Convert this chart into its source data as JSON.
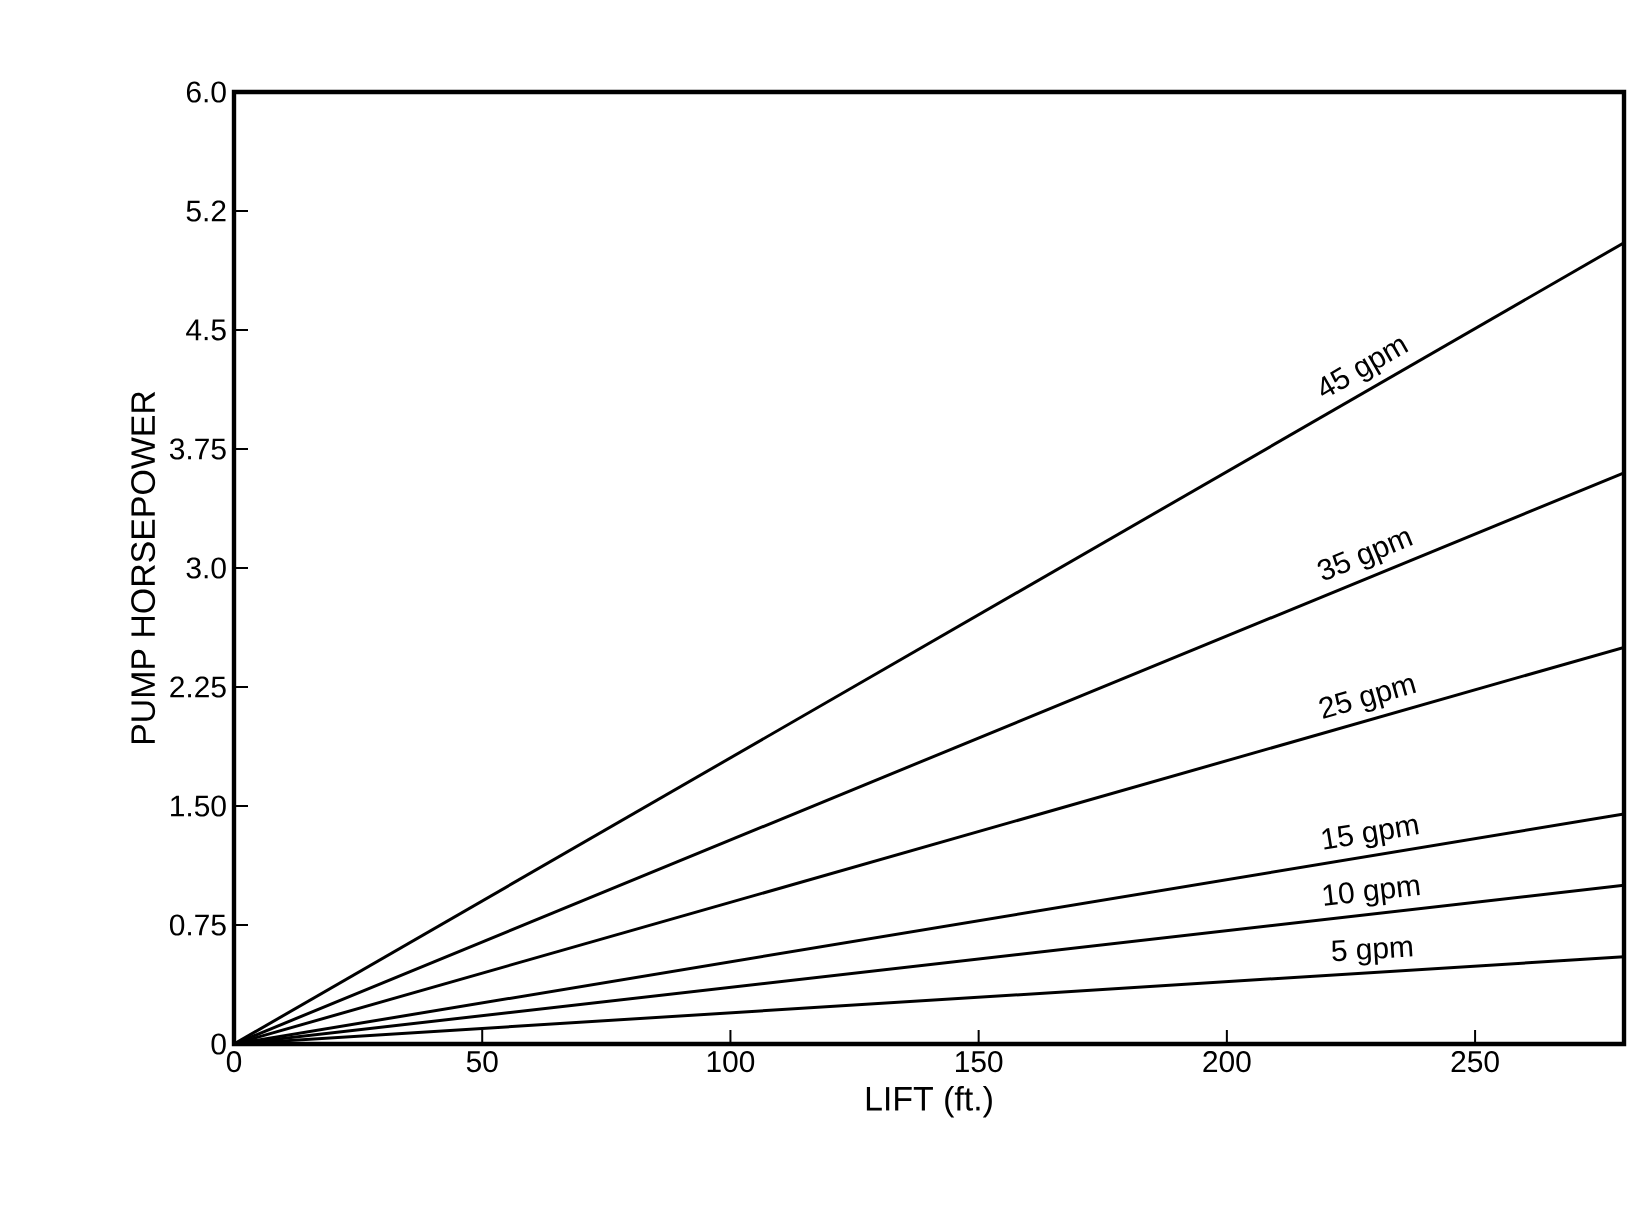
{
  "chart_data": {
    "type": "line",
    "xlabel": "LIFT (ft.)",
    "ylabel": "PUMP HORSEPOWER",
    "x": [
      0,
      280
    ],
    "series": [
      {
        "name": "45 gpm",
        "color": "#000000",
        "values": [
          0,
          5.05
        ]
      },
      {
        "name": "35 gpm",
        "color": "#000000",
        "values": [
          0,
          3.6
        ]
      },
      {
        "name": "25 gpm",
        "color": "#000000",
        "values": [
          0,
          2.5
        ]
      },
      {
        "name": "15 gpm",
        "color": "#000000",
        "values": [
          0,
          1.45
        ]
      },
      {
        "name": "10 gpm",
        "color": "#000000",
        "values": [
          0,
          1.0
        ]
      },
      {
        "name": "5 gpm",
        "color": "#000000",
        "values": [
          0,
          0.55
        ]
      }
    ],
    "xlim": [
      0,
      280
    ],
    "xticks": [
      0,
      50,
      100,
      150,
      200,
      250
    ],
    "ylim": [
      0,
      6
    ],
    "yticks": [
      0,
      0.75,
      {
        "value": 1.5,
        "label": "1.50"
      },
      {
        "value": 2.25,
        "label": "2.25"
      },
      {
        "value": 3.0,
        "label": "3.0"
      },
      3.75,
      4.5,
      {
        "value": 5.25,
        "label": "5.2"
      },
      {
        "value": 6.0,
        "label": "6.0"
      }
    ],
    "grid": false,
    "legend": false,
    "marker": "none",
    "line_style": "solid"
  }
}
